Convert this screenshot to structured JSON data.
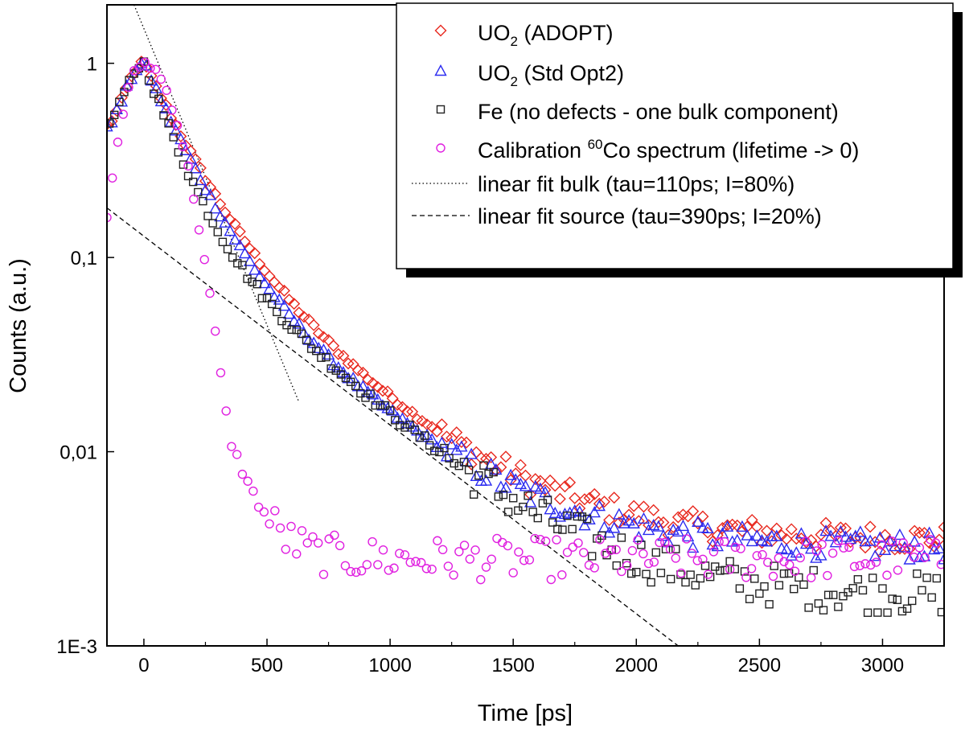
{
  "chart_data": {
    "type": "scatter",
    "title": "",
    "xlabel": "Time [ps]",
    "ylabel": "Counts (a.u.)",
    "xlim": [
      -150,
      3250
    ],
    "ylim": [
      0.001,
      2
    ],
    "yscale": "log",
    "grid": false,
    "legend_position": "top-right",
    "x_ticks": [
      {
        "value": 0,
        "label": "0"
      },
      {
        "value": 500,
        "label": "500"
      },
      {
        "value": 1000,
        "label": "1000"
      },
      {
        "value": 1500,
        "label": "1500"
      },
      {
        "value": 2000,
        "label": "2000"
      },
      {
        "value": 2500,
        "label": "2500"
      },
      {
        "value": 3000,
        "label": "3000"
      }
    ],
    "y_ticks": [
      {
        "value": 1,
        "label": "1"
      },
      {
        "value": 0.1,
        "label": "0,1"
      },
      {
        "value": 0.01,
        "label": "0,01"
      },
      {
        "value": 0.001,
        "label": "1E-3"
      }
    ],
    "series": [
      {
        "name": "UO2 (ADOPT)",
        "legend_main": "UO",
        "legend_sub": "2",
        "legend_rest": " (ADOPT)",
        "marker": "diamond",
        "color": "#e8281e",
        "shape": "peak-decay",
        "peak": 1.0,
        "tau_fast": 150,
        "tau_slow": 400,
        "amp_slow": 0.18,
        "bg": 0.0035,
        "noise": 0.08
      },
      {
        "name": "UO2 (Std Opt2)",
        "legend_main": "UO",
        "legend_sub": "2",
        "legend_rest": " (Std Opt2)",
        "marker": "triangle",
        "color": "#2c2cf0",
        "shape": "peak-decay",
        "peak": 1.0,
        "tau_fast": 140,
        "tau_slow": 390,
        "amp_slow": 0.16,
        "bg": 0.0032,
        "noise": 0.08
      },
      {
        "name": "Fe (no defects - one bulk component)",
        "legend_text": "Fe (no defects - one bulk component)",
        "marker": "square",
        "color": "#222222",
        "shape": "peak-decay",
        "peak": 1.0,
        "tau_fast": 110,
        "tau_slow": 390,
        "amp_slow": 0.18,
        "bg": 0.0018,
        "noise": 0.12
      },
      {
        "name": "Calibration 60Co spectrum (lifetime -> 0)",
        "legend_pre": "Calibration ",
        "legend_sup": "60",
        "legend_rest": "Co spectrum (lifetime -> 0)",
        "marker": "circle",
        "color": "#e020e0",
        "shape": "calibration",
        "peak": 1.0,
        "tau_fast": 60,
        "tau_slow": 90,
        "amp_slow": 0.0,
        "bg": 0.0028,
        "noise": 0.12
      }
    ],
    "fits": [
      {
        "name": "linear fit bulk (tau=110ps; I=80%)",
        "style": "dotted",
        "x": [
          -40,
          630
        ],
        "y": [
          2.0,
          0.018
        ]
      },
      {
        "name": "linear fit source (tau=390ps; I=20%)",
        "style": "dashed",
        "x": [
          -150,
          2170
        ],
        "y": [
          0.18,
          0.001
        ]
      }
    ]
  }
}
